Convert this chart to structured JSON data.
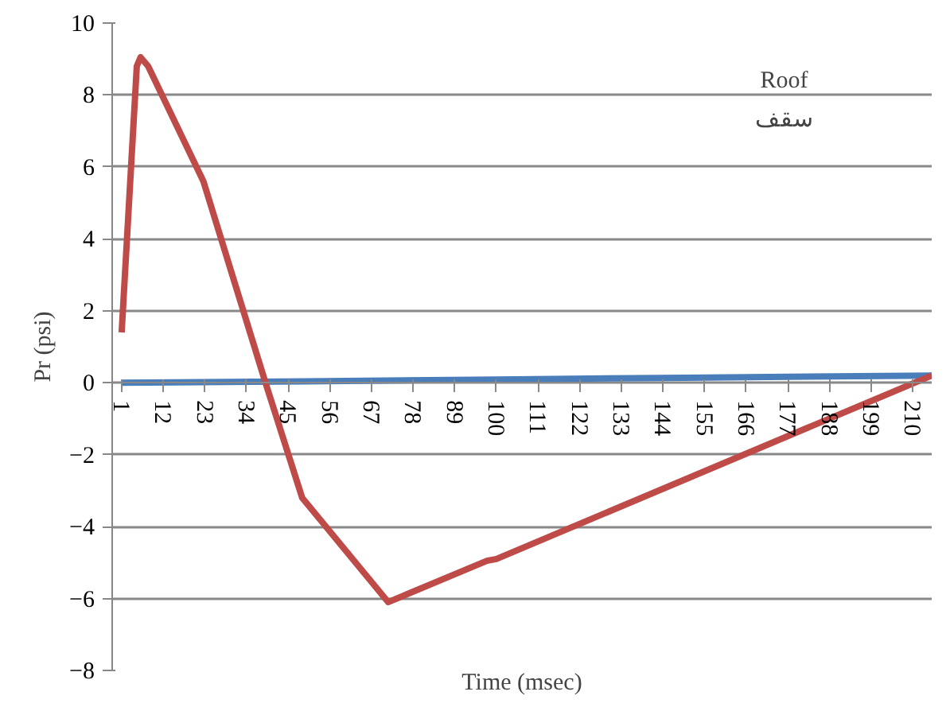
{
  "chart_data": {
    "type": "line",
    "xlabel": "Time (msec)",
    "ylabel": "Pr (psi)",
    "annotations": [
      "Roof",
      "سقف"
    ],
    "xlim": [
      -1.5,
      215
    ],
    "xticks": [
      1,
      12,
      23,
      34,
      45,
      56,
      67,
      78,
      89,
      100,
      111,
      122,
      133,
      144,
      155,
      166,
      177,
      188,
      199,
      210
    ],
    "ylim": [
      -8,
      10
    ],
    "yticks": [
      -8,
      -6,
      -4,
      -2,
      0,
      2,
      4,
      6,
      8,
      10
    ],
    "grid": "y",
    "series": [
      {
        "color": "#4a7ebb",
        "x": [
          1,
          50,
          100,
          150,
          215
        ],
        "values": [
          0,
          0.04,
          0.09,
          0.14,
          0.2
        ]
      },
      {
        "color": "#be4b48",
        "x": [
          1,
          5,
          6,
          8,
          22.6,
          39,
          48.7,
          71.4,
          97.5,
          100,
          215
        ],
        "values": [
          1.4,
          8.8,
          9.05,
          8.8,
          5.6,
          0,
          -3.2,
          -6.1,
          -4.95,
          -4.9,
          0.2
        ]
      }
    ]
  }
}
